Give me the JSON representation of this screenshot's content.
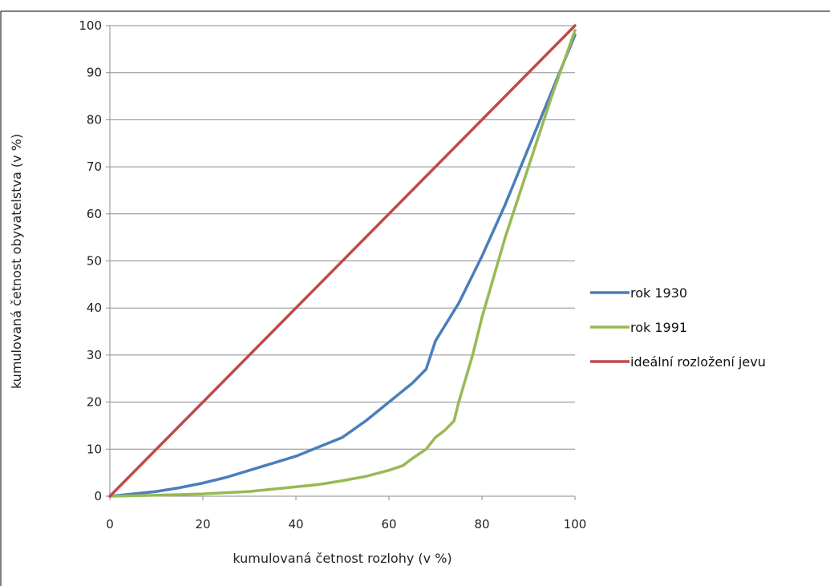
{
  "chart_data": {
    "type": "line",
    "title": "",
    "xlabel": "kumulovaná četnost rozlohy (v %)",
    "ylabel": "kumulovaná četnost obyvatelstva (v %)",
    "xlim": [
      0,
      100
    ],
    "ylim": [
      0,
      100
    ],
    "x_ticks": [
      0,
      20,
      40,
      60,
      80,
      100
    ],
    "y_ticks": [
      0,
      10,
      20,
      30,
      40,
      50,
      60,
      70,
      80,
      90,
      100
    ],
    "grid": "horizontal",
    "legend_position": "right",
    "series": [
      {
        "name": "rok 1930",
        "color": "#4a7ebb",
        "x": [
          0,
          5,
          10,
          15,
          20,
          25,
          30,
          35,
          40,
          45,
          50,
          55,
          60,
          65,
          68,
          70,
          75,
          80,
          85,
          90,
          95,
          100
        ],
        "y": [
          0,
          0.5,
          1,
          1.8,
          2.8,
          4,
          5.5,
          7,
          8.5,
          10.5,
          12.5,
          16,
          20,
          24,
          27,
          33,
          41,
          51,
          62,
          74,
          86,
          98
        ]
      },
      {
        "name": "rok 1991",
        "color": "#98b954",
        "x": [
          0,
          10,
          20,
          30,
          40,
          45,
          50,
          55,
          60,
          63,
          65,
          68,
          70,
          72,
          74,
          75,
          78,
          80,
          85,
          90,
          95,
          100
        ],
        "y": [
          0,
          0.2,
          0.5,
          1,
          2,
          2.5,
          3.3,
          4.2,
          5.5,
          6.5,
          8,
          10,
          12.5,
          14,
          16,
          20,
          30,
          38,
          55,
          70,
          85,
          99
        ]
      },
      {
        "name": "ideální rozložení jevu",
        "color": "#be4b48",
        "x": [
          0,
          100
        ],
        "y": [
          0,
          100
        ]
      }
    ]
  }
}
